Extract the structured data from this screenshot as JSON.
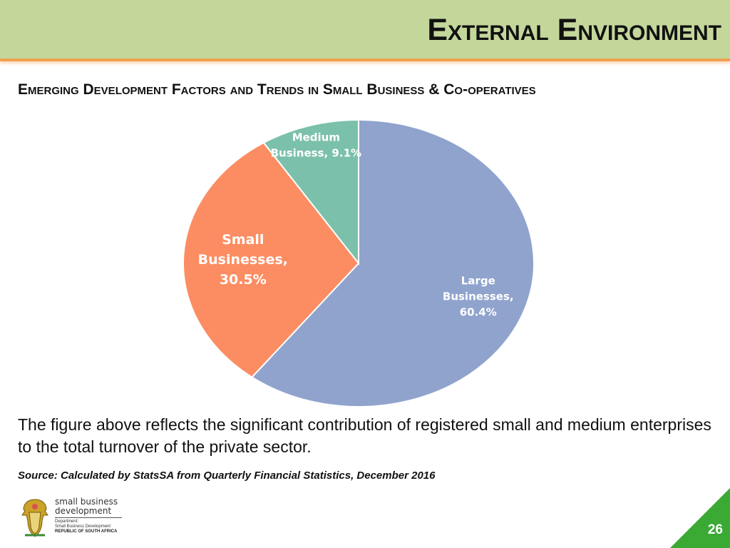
{
  "header": {
    "title": "External Environment"
  },
  "subtitle": "Emerging Development Factors and Trends in Small Business & Co-operatives",
  "chart_data": {
    "type": "pie",
    "start_angle_deg": 0,
    "direction": "clockwise",
    "slices": [
      {
        "label_lines": [
          "Large",
          "Businesses,",
          "60.4%"
        ],
        "value": 60.4,
        "color": "#8fa3cd"
      },
      {
        "label_lines": [
          "Small",
          "Businesses,",
          "30.5%"
        ],
        "value": 30.5,
        "color": "#fc8d62"
      },
      {
        "label_lines": [
          "Medium",
          "Business, 9.1%"
        ],
        "value": 9.1,
        "color": "#7bc0aa"
      }
    ]
  },
  "body_text": "The figure above reflects the significant contribution of registered small and medium enterprises to the total turnover of the private sector.",
  "source": "Source: Calculated by StatsSA from Quarterly Financial Statistics, December 2016",
  "logo": {
    "line1": "small business",
    "line2": "development",
    "dept1": "Department:",
    "dept2": "Small Business Development",
    "country": "REPUBLIC OF SOUTH AFRICA"
  },
  "page_number": "26",
  "colors": {
    "header_bg": "#c4d79b",
    "header_rule": "#f0a050",
    "corner": "#3aaa35"
  }
}
